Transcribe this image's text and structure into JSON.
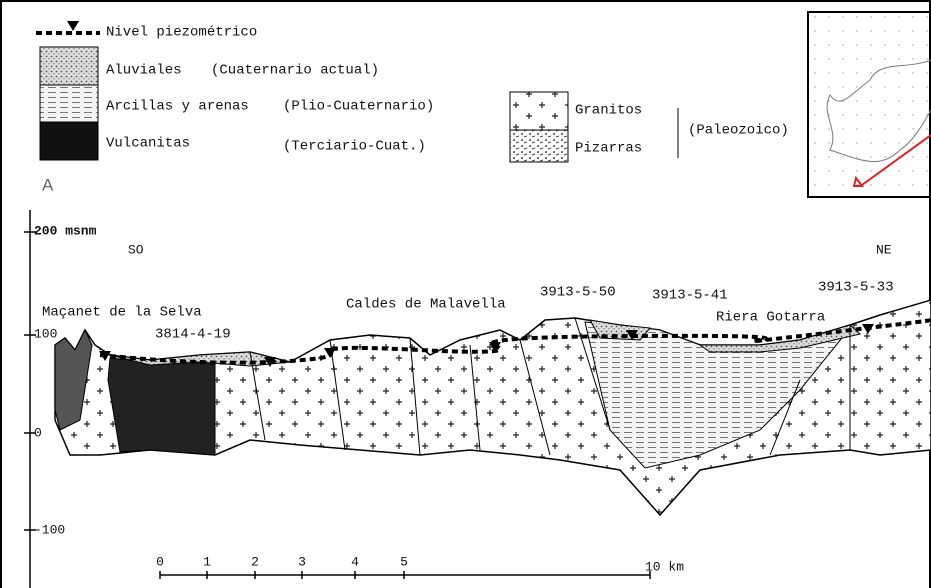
{
  "legend": {
    "water_table": "Nivel piezométrico",
    "aluviales": "Aluviales",
    "aluviales_age": "(Cuaternario actual)",
    "arcillas": "Arcillas y arenas",
    "arcillas_age": "(Plio-Cuaternario)",
    "vulcanitas": "Vulcanitas",
    "vulcanitas_age": "(Terciario-Cuat.)",
    "granitos": "Granitos",
    "pizarras": "Pizarras",
    "paleozoico": "(Paleozoico)"
  },
  "panel": "A",
  "elevation_axis": [
    "200 msnm",
    "100",
    "0",
    "-100"
  ],
  "directions": {
    "left": "SO",
    "right": "NE"
  },
  "labels": {
    "macanet": "Maçanet de la Selva",
    "well1": "3814-4-19",
    "caldes": "Caldes de Malavella",
    "well2": "3913-5-50",
    "well3": "3913-5-41",
    "riera": "Riera Gotarra",
    "well4": "3913-5-33"
  },
  "scale": {
    "ticks": [
      "0",
      "1",
      "2",
      "3",
      "4",
      "5"
    ],
    "end": "10 km"
  }
}
